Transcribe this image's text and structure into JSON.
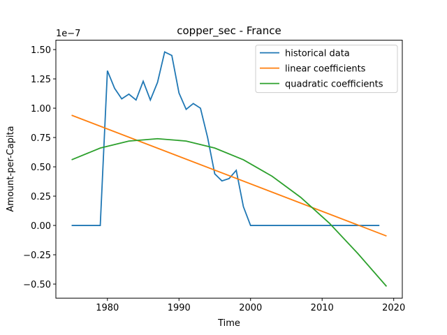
{
  "chart_data": {
    "type": "line",
    "title": "copper_sec - France",
    "xlabel": "Time",
    "ylabel": "Amount-per-Capita",
    "y_offset_text": "1e−7",
    "xlim": [
      1972.8,
      2021.2
    ],
    "xticks": [
      1980,
      1990,
      2000,
      2010,
      2020
    ],
    "ylim": [
      -0.62,
      1.58
    ],
    "yticks": [
      {
        "value": -0.5,
        "label": "−0.50"
      },
      {
        "value": -0.25,
        "label": "−0.25"
      },
      {
        "value": 0,
        "label": "0.00"
      },
      {
        "value": 0.25,
        "label": "0.25"
      },
      {
        "value": 0.5,
        "label": "0.50"
      },
      {
        "value": 0.75,
        "label": "0.75"
      },
      {
        "value": 1,
        "label": "1.00"
      },
      {
        "value": 1.25,
        "label": "1.25"
      },
      {
        "value": 1.5,
        "label": "1.50"
      }
    ],
    "legend": "upper right",
    "series": [
      {
        "name": "historical data",
        "color": "#1f77b4",
        "x": [
          1975,
          1976,
          1977,
          1978,
          1979,
          1980,
          1981,
          1982,
          1983,
          1984,
          1985,
          1986,
          1987,
          1988,
          1989,
          1990,
          1991,
          1992,
          1993,
          1994,
          1995,
          1996,
          1997,
          1998,
          1999,
          2000,
          2001,
          2002,
          2003,
          2004,
          2005,
          2006,
          2007,
          2008,
          2009,
          2010,
          2011,
          2012,
          2013,
          2014,
          2015,
          2016,
          2017,
          2018
        ],
        "values": [
          0,
          0,
          0,
          0,
          0,
          1.32,
          1.17,
          1.08,
          1.12,
          1.07,
          1.23,
          1.07,
          1.22,
          1.48,
          1.45,
          1.13,
          0.99,
          1.04,
          1.0,
          0.75,
          0.44,
          0.38,
          0.4,
          0.47,
          0.16,
          0,
          0,
          0,
          0,
          0,
          0,
          0,
          0,
          0,
          0,
          0,
          0,
          0,
          0,
          0,
          0,
          0,
          0,
          0
        ]
      },
      {
        "name": "linear coefficients",
        "color": "#ff7f0e",
        "x": [
          1975,
          2019
        ],
        "values": [
          0.94,
          -0.09
        ]
      },
      {
        "name": "quadratic coefficients",
        "color": "#2ca02c",
        "x": [
          1975,
          1979,
          1983,
          1987,
          1991,
          1995,
          1999,
          2003,
          2007,
          2011,
          2015,
          2019
        ],
        "values": [
          0.56,
          0.66,
          0.72,
          0.74,
          0.72,
          0.66,
          0.56,
          0.42,
          0.24,
          0.02,
          -0.24,
          -0.52
        ]
      }
    ]
  }
}
